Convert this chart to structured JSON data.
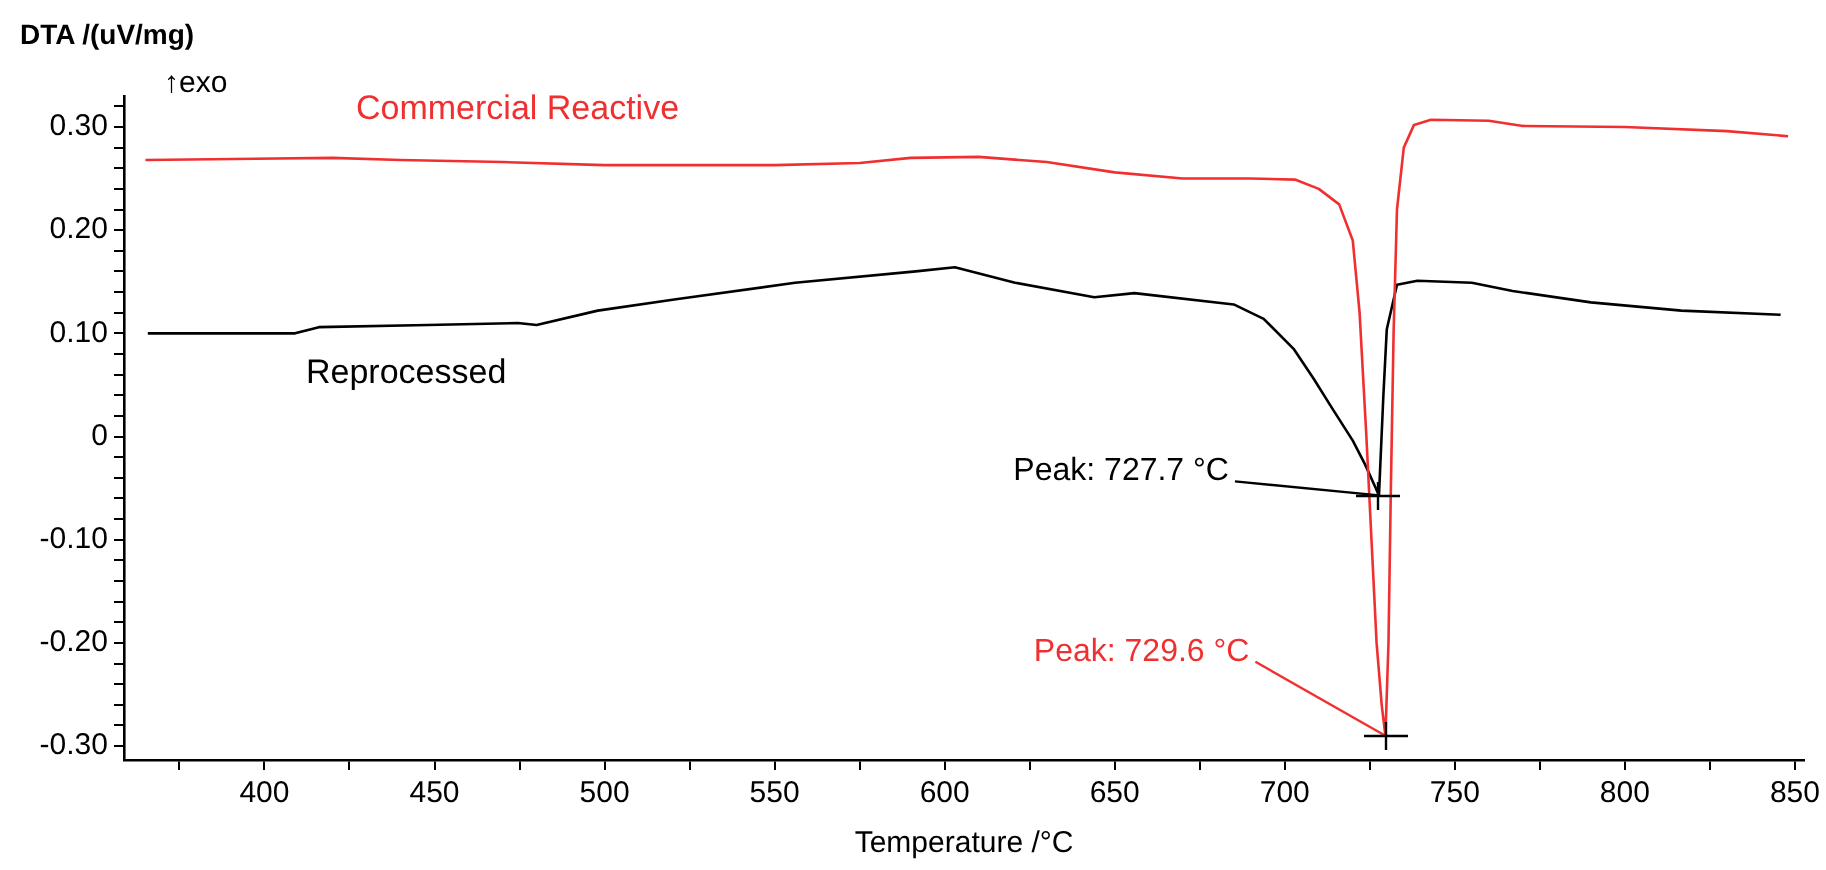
{
  "chart_data": {
    "type": "line",
    "ylabel": "DTA /(uV/mg)",
    "xlabel": "Temperature /°C",
    "xlim": [
      358.7,
      852.7
    ],
    "xticks": [
      {
        "value": 375,
        "label": null
      },
      400,
      {
        "value": 425,
        "label": null
      },
      450,
      {
        "value": 475,
        "label": null
      },
      500,
      {
        "value": 525,
        "label": null
      },
      550,
      {
        "value": 575,
        "label": null
      },
      600,
      {
        "value": 625,
        "label": null
      },
      650,
      {
        "value": 675,
        "label": null
      },
      700,
      {
        "value": 725,
        "label": null
      },
      750,
      {
        "value": 775,
        "label": null
      },
      800,
      {
        "value": 825,
        "label": null
      },
      850
    ],
    "ylim": [
      -0.3135,
      0.33
    ],
    "yticks": [
      {
        "value": -0.3,
        "label": "-0.30"
      },
      {
        "value": -0.28,
        "label": null
      },
      {
        "value": -0.26,
        "label": null
      },
      {
        "value": -0.24,
        "label": null
      },
      {
        "value": -0.22,
        "label": null
      },
      {
        "value": -0.2,
        "label": "-0.20"
      },
      {
        "value": -0.18,
        "label": null
      },
      {
        "value": -0.16,
        "label": null
      },
      {
        "value": -0.14,
        "label": null
      },
      {
        "value": -0.12,
        "label": null
      },
      {
        "value": -0.1,
        "label": "-0.10"
      },
      {
        "value": -0.08,
        "label": null
      },
      {
        "value": -0.06,
        "label": null
      },
      {
        "value": -0.04,
        "label": null
      },
      {
        "value": -0.02,
        "label": null
      },
      0,
      {
        "value": 0.02,
        "label": null
      },
      {
        "value": 0.04,
        "label": null
      },
      {
        "value": 0.06,
        "label": null
      },
      {
        "value": 0.08,
        "label": null
      },
      {
        "value": 0.1,
        "label": "0.10"
      },
      {
        "value": 0.12,
        "label": null
      },
      {
        "value": 0.14,
        "label": null
      },
      {
        "value": 0.16,
        "label": null
      },
      {
        "value": 0.18,
        "label": null
      },
      {
        "value": 0.2,
        "label": "0.20"
      },
      {
        "value": 0.22,
        "label": null
      },
      {
        "value": 0.24,
        "label": null
      },
      {
        "value": 0.26,
        "label": null
      },
      {
        "value": 0.28,
        "label": null
      },
      {
        "value": 0.3,
        "label": "0.30"
      },
      {
        "value": 0.32,
        "label": null
      }
    ],
    "grid": false,
    "legend": false,
    "marker": "none",
    "line_style": "solid",
    "series": [
      {
        "name": "Commercial Reactive",
        "color": "#f03030",
        "x": [
          365,
          420,
          440,
          470,
          500,
          550,
          575,
          590,
          610,
          630,
          650,
          670,
          690,
          703,
          710,
          716,
          720,
          722,
          724,
          725.5,
          727,
          728.5,
          729.6,
          730.5,
          731.2,
          732,
          733,
          735,
          738,
          743,
          760,
          770,
          800,
          830,
          848
        ],
        "values": [
          0.268,
          0.27,
          0.268,
          0.266,
          0.263,
          0.263,
          0.265,
          0.27,
          0.271,
          0.266,
          0.256,
          0.25,
          0.25,
          0.249,
          0.24,
          0.225,
          0.19,
          0.12,
          0.0,
          -0.1,
          -0.2,
          -0.26,
          -0.29,
          -0.2,
          -0.05,
          0.1,
          0.22,
          0.28,
          0.302,
          0.307,
          0.306,
          0.301,
          0.3,
          0.296,
          0.291
        ]
      },
      {
        "name": "Reprocessed",
        "color": "#000000",
        "x": [
          365.7,
          409,
          416,
          448,
          474.5,
          480,
          498,
          521,
          556,
          591.5,
          603,
          620.7,
          644,
          655.8,
          685,
          693.8,
          702.6,
          708.5,
          714,
          720,
          723.6,
          727.7,
          729,
          730,
          733,
          739,
          755,
          767,
          790,
          816.6,
          845.8
        ],
        "values": [
          0.1,
          0.1,
          0.106,
          0.108,
          0.11,
          0.108,
          0.122,
          0.133,
          0.149,
          0.16,
          0.164,
          0.149,
          0.135,
          0.139,
          0.128,
          0.114,
          0.085,
          0.056,
          0.027,
          -0.004,
          -0.027,
          -0.057,
          0.04,
          0.104,
          0.147,
          0.151,
          0.149,
          0.141,
          0.13,
          0.122,
          0.118
        ]
      }
    ],
    "annotations": [
      "↑exo",
      {
        "text": "Peak: 729.6 °C",
        "x": 729.6,
        "y": -0.29
      },
      {
        "text": "Peak: 727.7 °C",
        "x": 727.7,
        "y": -0.057
      }
    ]
  }
}
